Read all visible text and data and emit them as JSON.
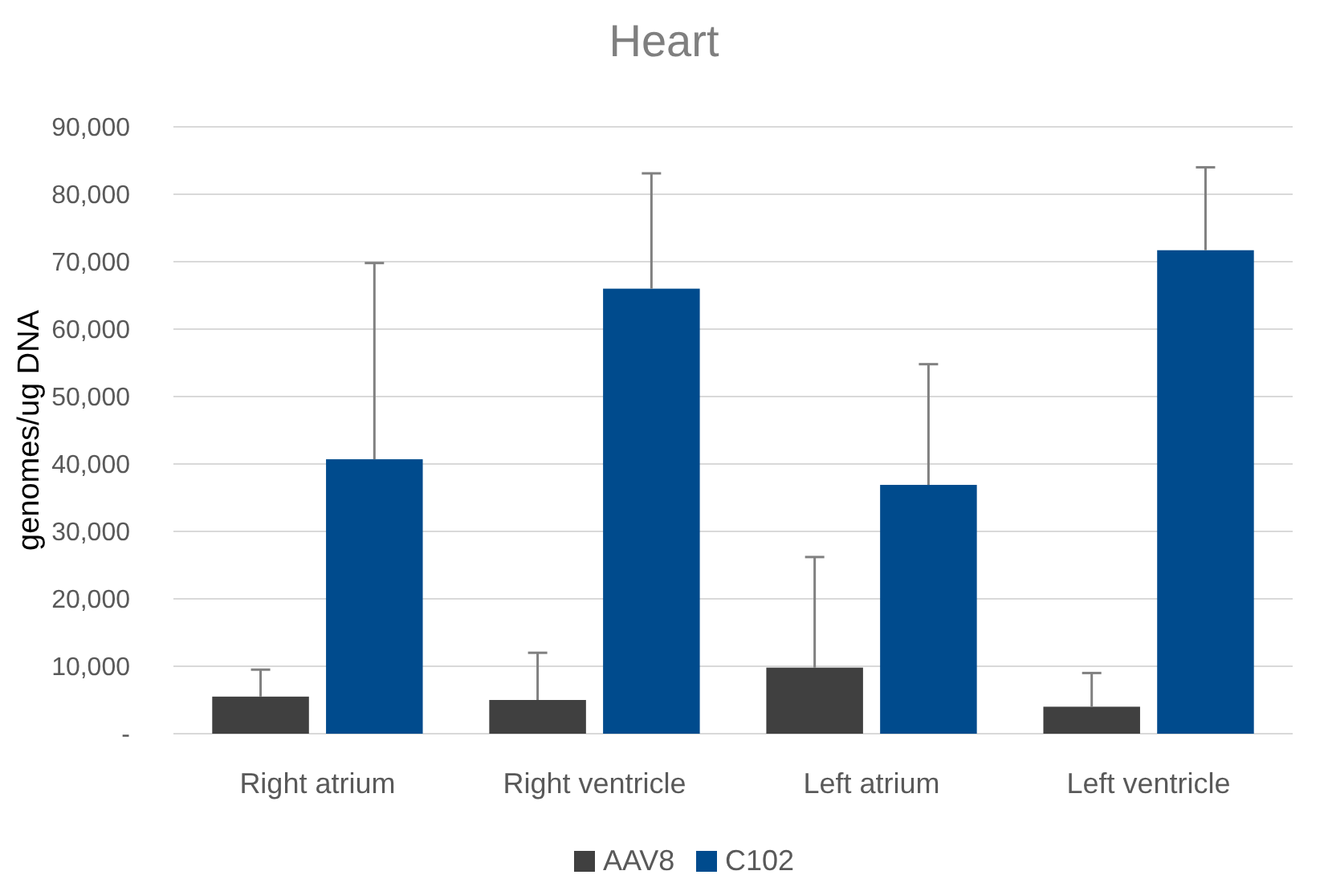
{
  "chart_data": {
    "type": "bar",
    "title": "Heart",
    "ylabel": "genomes/ug DNA",
    "categories": [
      "Right atrium",
      "Right ventricle",
      "Left atrium",
      "Left ventricle"
    ],
    "series": [
      {
        "name": "AAV8",
        "color": "#404040",
        "values": [
          5500,
          5000,
          9800,
          4000
        ],
        "errors": [
          [
            5500,
            9500
          ],
          [
            5000,
            12000
          ],
          [
            9800,
            26200
          ],
          [
            4000,
            9000
          ]
        ]
      },
      {
        "name": "C102",
        "color": "#004b8d",
        "values": [
          40700,
          66000,
          36900,
          71700
        ],
        "errors": [
          [
            40700,
            69800
          ],
          [
            66000,
            83100
          ],
          [
            36900,
            54800
          ],
          [
            71700,
            84000
          ]
        ]
      }
    ],
    "ylim": [
      0,
      90000
    ],
    "yticks": [
      {
        "value": 0,
        "label": "-"
      },
      {
        "value": 10000,
        "label": "10,000"
      },
      {
        "value": 20000,
        "label": "20,000"
      },
      {
        "value": 30000,
        "label": "30,000"
      },
      {
        "value": 40000,
        "label": "40,000"
      },
      {
        "value": 50000,
        "label": "50,000"
      },
      {
        "value": 60000,
        "label": "60,000"
      },
      {
        "value": 70000,
        "label": "70,000"
      },
      {
        "value": 80000,
        "label": "80,000"
      },
      {
        "value": 90000,
        "label": "90,000"
      }
    ],
    "grid": "y",
    "legend": "bottom"
  }
}
